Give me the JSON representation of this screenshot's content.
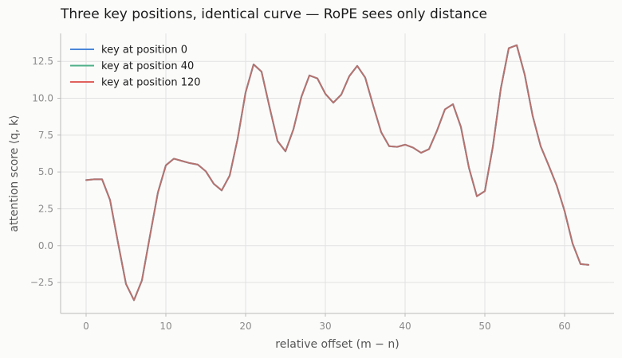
{
  "chart_data": {
    "type": "line",
    "title": "Three key positions, identical curve — RoPE sees only distance",
    "xlabel": "relative offset (m − n)",
    "ylabel": "attention score ⟨q, k⟩",
    "xlim": [
      -3.2,
      66.2
    ],
    "ylim": [
      -4.6,
      14.4
    ],
    "xticks": [
      0,
      10,
      20,
      30,
      40,
      50,
      60
    ],
    "yticks": [
      -2.5,
      0.0,
      2.5,
      5.0,
      7.5,
      10.0,
      12.5
    ],
    "ytick_labels": [
      "−2.5",
      "0.0",
      "2.5",
      "5.0",
      "7.5",
      "10.0",
      "12.5"
    ],
    "grid": true,
    "legend_position": "top-left",
    "x": [
      0,
      1,
      2,
      3,
      4,
      5,
      6,
      7,
      8,
      9,
      10,
      11,
      12,
      13,
      14,
      15,
      16,
      17,
      18,
      19,
      20,
      21,
      22,
      23,
      24,
      25,
      26,
      27,
      28,
      29,
      30,
      31,
      32,
      33,
      34,
      35,
      36,
      37,
      38,
      39,
      40,
      41,
      42,
      43,
      44,
      45,
      46,
      47,
      48,
      49,
      50,
      51,
      52,
      53,
      54,
      55,
      56,
      57,
      58,
      59,
      60,
      61,
      62,
      63
    ],
    "series": [
      {
        "name": "key at position 0",
        "color": "#4a86d8",
        "values": [
          4.45,
          4.5,
          4.5,
          3.1,
          0.2,
          -2.6,
          -3.7,
          -2.35,
          0.65,
          3.6,
          5.45,
          5.9,
          5.75,
          5.6,
          5.5,
          5.05,
          4.2,
          3.75,
          4.75,
          7.25,
          10.4,
          12.3,
          11.8,
          9.4,
          7.1,
          6.4,
          7.9,
          10.1,
          11.55,
          11.35,
          10.3,
          9.7,
          10.25,
          11.5,
          12.2,
          11.4,
          9.5,
          7.7,
          6.75,
          6.7,
          6.85,
          6.65,
          6.3,
          6.55,
          7.8,
          9.25,
          9.6,
          8.05,
          5.3,
          3.35,
          3.7,
          6.7,
          10.65,
          13.4,
          13.6,
          11.6,
          8.8,
          6.75,
          5.45,
          4.1,
          2.35,
          0.15,
          -1.25,
          -1.3
        ]
      },
      {
        "name": "key at position 40",
        "color": "#4daf87",
        "values": [
          4.45,
          4.5,
          4.5,
          3.1,
          0.2,
          -2.6,
          -3.7,
          -2.35,
          0.65,
          3.6,
          5.45,
          5.9,
          5.75,
          5.6,
          5.5,
          5.05,
          4.2,
          3.75,
          4.75,
          7.25,
          10.4,
          12.3,
          11.8,
          9.4,
          7.1,
          6.4,
          7.9,
          10.1,
          11.55,
          11.35,
          10.3,
          9.7,
          10.25,
          11.5,
          12.2,
          11.4,
          9.5,
          7.7,
          6.75,
          6.7,
          6.85,
          6.65,
          6.3,
          6.55,
          7.8,
          9.25,
          9.6,
          8.05,
          5.3,
          3.35,
          3.7,
          6.7,
          10.65,
          13.4,
          13.6,
          11.6,
          8.8,
          6.75,
          5.45,
          4.1,
          2.35,
          0.15,
          -1.25,
          -1.3
        ]
      },
      {
        "name": "key at position 120",
        "color": "#e0605c",
        "values": [
          4.45,
          4.5,
          4.5,
          3.1,
          0.2,
          -2.6,
          -3.7,
          -2.35,
          0.65,
          3.6,
          5.45,
          5.9,
          5.75,
          5.6,
          5.5,
          5.05,
          4.2,
          3.75,
          4.75,
          7.25,
          10.4,
          12.3,
          11.8,
          9.4,
          7.1,
          6.4,
          7.9,
          10.1,
          11.55,
          11.35,
          10.3,
          9.7,
          10.25,
          11.5,
          12.2,
          11.4,
          9.5,
          7.7,
          6.75,
          6.7,
          6.85,
          6.65,
          6.3,
          6.55,
          7.8,
          9.25,
          9.6,
          8.05,
          5.3,
          3.35,
          3.7,
          6.7,
          10.65,
          13.4,
          13.6,
          11.6,
          8.8,
          6.75,
          5.45,
          4.1,
          2.35,
          0.15,
          -1.25,
          -1.3
        ]
      }
    ]
  }
}
